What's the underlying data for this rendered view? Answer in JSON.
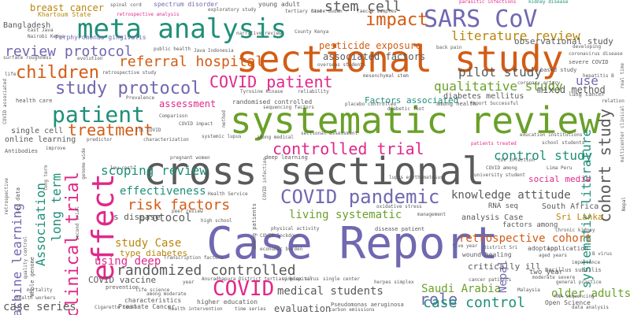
{
  "words": [
    {
      "text": "Case Report",
      "color": "#7068b0"
    },
    {
      "text": "cross sectional",
      "color": "#5a5a5a"
    },
    {
      "text": "sectional study",
      "color": "#d25c14"
    },
    {
      "text": "systematic review",
      "color": "#6aa02a"
    },
    {
      "text": "meta analysis",
      "color": "#1f8f78"
    },
    {
      "text": "effect",
      "color": "#e0288a"
    },
    {
      "text": "COVID pandemic",
      "color": "#7068b0"
    },
    {
      "text": "SARS CoV",
      "color": "#7068b0"
    },
    {
      "text": "patient",
      "color": "#1f8f78"
    },
    {
      "text": "impact",
      "color": "#d25c14"
    },
    {
      "text": "children",
      "color": "#d25c14"
    },
    {
      "text": "study protocol",
      "color": "#7068b0"
    },
    {
      "text": "COVID patient",
      "color": "#e0288a"
    },
    {
      "text": "review protocol",
      "color": "#7068b0"
    },
    {
      "text": "clinical trial",
      "color": "#e0288a"
    },
    {
      "text": "randomized controlled",
      "color": "#5a5a5a"
    },
    {
      "text": "controlled trial",
      "color": "#e0288a"
    },
    {
      "text": "treatment",
      "color": "#d25c14"
    },
    {
      "text": "COVID",
      "color": "#e0288a"
    },
    {
      "text": "cohort study",
      "color": "#5a5a5a"
    },
    {
      "text": "systematic literature",
      "color": "#1f8f78"
    },
    {
      "text": "stem cell",
      "color": "#5a5a5a"
    },
    {
      "text": "literature review",
      "color": "#b8860b"
    },
    {
      "text": "scoping review",
      "color": "#1f8f78"
    },
    {
      "text": "referral hospital",
      "color": "#d25c14"
    },
    {
      "text": "risk factors",
      "color": "#d25c14"
    },
    {
      "text": "control study",
      "color": "#1f8f78"
    },
    {
      "text": "Association",
      "color": "#1f8f78"
    },
    {
      "text": "long term",
      "color": "#1f8f78"
    },
    {
      "text": "machine learning",
      "color": "#7068b0"
    },
    {
      "text": "role",
      "color": "#7068b0"
    },
    {
      "text": "case control",
      "color": "#1f8f78"
    },
    {
      "text": "qualitative study",
      "color": "#6aa02a"
    },
    {
      "text": "pilot study",
      "color": "#5a5a5a"
    },
    {
      "text": "use",
      "color": "#7068b0"
    },
    {
      "text": "knowledge attitude",
      "color": "#5a5a5a"
    },
    {
      "text": "living systematic",
      "color": "#6aa02a"
    },
    {
      "text": "effectiveness",
      "color": "#1f8f78"
    },
    {
      "text": "retrospective cohort",
      "color": "#d25c14"
    },
    {
      "text": "medical students",
      "color": "#5a5a5a"
    },
    {
      "text": "study Case",
      "color": "#b8860b"
    },
    {
      "text": "using deep",
      "color": "#e0288a"
    },
    {
      "text": "Saudi Arabia",
      "color": "#6aa02a"
    },
    {
      "text": "older adults",
      "color": "#6aa02a"
    },
    {
      "text": "case series",
      "color": "#5a5a5a"
    },
    {
      "text": "evaluation",
      "color": "#5a5a5a"
    },
    {
      "text": "mixed method",
      "color": "#5a5a5a"
    },
    {
      "text": "associated factors",
      "color": "#5a5a5a"
    },
    {
      "text": "pesticide exposure",
      "color": "#d25c14"
    },
    {
      "text": "assessment",
      "color": "#e0288a"
    },
    {
      "text": "protocol",
      "color": "#5a5a5a"
    },
    {
      "text": "breast cancer",
      "color": "#b8860b"
    },
    {
      "text": "Bangladesh",
      "color": "#5a5a5a"
    },
    {
      "text": "observational study",
      "color": "#5a5a5a"
    },
    {
      "text": "Factors associated",
      "color": "#1f8f78"
    },
    {
      "text": "diabetes mellitus",
      "color": "#5a5a5a"
    },
    {
      "text": "Nepal",
      "color": "#7068b0"
    },
    {
      "text": "Sri Lanka",
      "color": "#b8860b"
    },
    {
      "text": "South Africa",
      "color": "#5a5a5a"
    },
    {
      "text": "type diabetes",
      "color": "#b8860b"
    },
    {
      "text": "social media",
      "color": "#e0288a"
    },
    {
      "text": "critically ill",
      "color": "#5a5a5a"
    },
    {
      "text": "COVID vaccine",
      "color": "#5a5a5a"
    },
    {
      "text": "s disease",
      "color": "#5a5a5a"
    },
    {
      "text": "randomised controlled",
      "color": "#5a5a5a"
    },
    {
      "text": "two year",
      "color": "#5a5a5a"
    },
    {
      "text": "single cell",
      "color": "#5a5a5a"
    },
    {
      "text": "online learning",
      "color": "#5a5a5a"
    },
    {
      "text": "Khartoum State",
      "color": "#b8860b"
    },
    {
      "text": "young adult",
      "color": "#5a5a5a"
    },
    {
      "text": "spectrum disorder",
      "color": "#7068b0"
    },
    {
      "text": "Porphyromonas gingivalis",
      "color": "#7068b0"
    },
    {
      "text": "retrospective analysis",
      "color": "#e0288a"
    },
    {
      "text": "exploratory study",
      "color": "#5a5a5a"
    },
    {
      "text": "parasitic infections",
      "color": "#e0288a"
    },
    {
      "text": "kidney disease",
      "color": "#1f8f78"
    },
    {
      "text": "State Sudan",
      "color": "#5a5a5a"
    },
    {
      "text": "faecal samples",
      "color": "#5a5a5a"
    },
    {
      "text": "tertiary care",
      "color": "#5a5a5a"
    },
    {
      "text": "spinal cord",
      "color": "#5a5a5a"
    },
    {
      "text": "East Java",
      "color": "#5a5a5a"
    },
    {
      "text": "Nairobi Kenya",
      "color": "#5a5a5a"
    },
    {
      "text": "County Kenya",
      "color": "#5a5a5a"
    },
    {
      "text": "narrative review",
      "color": "#5a5a5a"
    },
    {
      "text": "public health",
      "color": "#5a5a5a"
    },
    {
      "text": "Java Indonesia",
      "color": "#5a5a5a"
    },
    {
      "text": "retrospective study",
      "color": "#5a5a5a"
    },
    {
      "text": "health care",
      "color": "#5a5a5a"
    },
    {
      "text": "life",
      "color": "#5a5a5a"
    },
    {
      "text": "Comparison",
      "color": "#5a5a5a"
    },
    {
      "text": "characterization",
      "color": "#5a5a5a"
    },
    {
      "text": "among medical",
      "color": "#5a5a5a"
    },
    {
      "text": "sectional assessment",
      "color": "#5a5a5a"
    },
    {
      "text": "patients treated",
      "color": "#e0288a"
    },
    {
      "text": "education institutions",
      "color": "#5a5a5a"
    },
    {
      "text": "deep learning",
      "color": "#5a5a5a"
    },
    {
      "text": "lupus erythematosus",
      "color": "#5a5a5a"
    },
    {
      "text": "university student",
      "color": "#5a5a5a"
    },
    {
      "text": "Health Service",
      "color": "#5a5a5a"
    },
    {
      "text": "peer review",
      "color": "#5a5a5a"
    },
    {
      "text": "high school",
      "color": "#5a5a5a"
    },
    {
      "text": "physical activity",
      "color": "#5a5a5a"
    },
    {
      "text": "COVID lockdown",
      "color": "#5a5a5a"
    },
    {
      "text": "economic burden",
      "color": "#5a5a5a"
    },
    {
      "text": "analysis Case",
      "color": "#5a5a5a"
    },
    {
      "text": "RNA seq",
      "color": "#5a5a5a"
    },
    {
      "text": "factors among",
      "color": "#5a5a5a"
    },
    {
      "text": "wound healing",
      "color": "#5a5a5a"
    },
    {
      "text": "adoption",
      "color": "#5a5a5a"
    },
    {
      "text": "aged years",
      "color": "#5a5a5a"
    },
    {
      "text": "Bacillus subtilis",
      "color": "#5a5a5a"
    },
    {
      "text": "moderate severe",
      "color": "#5a5a5a"
    },
    {
      "text": "general practice",
      "color": "#5a5a5a"
    },
    {
      "text": "higher education",
      "color": "#5a5a5a"
    },
    {
      "text": "Pseudomonas aeruginosa",
      "color": "#5a5a5a"
    },
    {
      "text": "Open Science",
      "color": "#5a5a5a"
    },
    {
      "text": "Prostate Cancer",
      "color": "#5a5a5a"
    },
    {
      "text": "characteristics",
      "color": "#5a5a5a"
    },
    {
      "text": "among moderate",
      "color": "#5a5a5a"
    },
    {
      "text": "prevention",
      "color": "#5a5a5a"
    },
    {
      "text": "life science",
      "color": "#5a5a5a"
    },
    {
      "text": "Anuradhapura District tertiary hospital",
      "color": "#5a5a5a"
    },
    {
      "text": "severe COVID",
      "color": "#5a5a5a"
    },
    {
      "text": "coronavirus disease",
      "color": "#5a5a5a"
    },
    {
      "text": "developing",
      "color": "#5a5a5a"
    },
    {
      "text": "application",
      "color": "#5a5a5a"
    },
    {
      "text": "mesenchymal stem",
      "color": "#5a5a5a"
    },
    {
      "text": "Tyrosine Kinase",
      "color": "#5a5a5a"
    },
    {
      "text": "among health",
      "color": "#5a5a5a"
    },
    {
      "text": "diabetic foot",
      "color": "#5a5a5a"
    },
    {
      "text": "Antibodies",
      "color": "#5a5a5a"
    },
    {
      "text": "Cigarette Smoke",
      "color": "#5a5a5a"
    },
    {
      "text": "health workers",
      "color": "#5a5a5a"
    },
    {
      "text": "mortality",
      "color": "#5a5a5a"
    },
    {
      "text": "lung cancer",
      "color": "#5a5a5a"
    },
    {
      "text": "hepatitis B",
      "color": "#5a5a5a"
    },
    {
      "text": "coronary artery",
      "color": "#5a5a5a"
    },
    {
      "text": "back pain",
      "color": "#5a5a5a"
    },
    {
      "text": "overseas students",
      "color": "#5a5a5a"
    },
    {
      "text": "school students",
      "color": "#5a5a5a"
    },
    {
      "text": "CoV infection",
      "color": "#5a5a5a"
    },
    {
      "text": "Lima Peru",
      "color": "#5a5a5a"
    },
    {
      "text": "COVID among",
      "color": "#5a5a5a"
    },
    {
      "text": "chronic kidney",
      "color": "#5a5a5a"
    },
    {
      "text": "cancer patients",
      "color": "#5a5a5a"
    },
    {
      "text": "Malaysia",
      "color": "#5a5a5a"
    },
    {
      "text": "data analysis",
      "color": "#5a5a5a"
    },
    {
      "text": "RNA sequencing",
      "color": "#5a5a5a"
    },
    {
      "text": "importance",
      "color": "#5a5a5a"
    },
    {
      "text": "District Sri",
      "color": "#5a5a5a"
    },
    {
      "text": "herpes simplex",
      "color": "#5a5a5a"
    },
    {
      "text": "simplex virus",
      "color": "#5a5a5a"
    },
    {
      "text": "single center",
      "color": "#5a5a5a"
    },
    {
      "text": "management",
      "color": "#5a5a5a"
    },
    {
      "text": "oxidative stress",
      "color": "#5a5a5a"
    },
    {
      "text": "five year",
      "color": "#5a5a5a"
    },
    {
      "text": "disease patient",
      "color": "#5a5a5a"
    },
    {
      "text": "improve",
      "color": "#5a5a5a"
    },
    {
      "text": "Whole genome",
      "color": "#5a5a5a"
    },
    {
      "text": "quality control",
      "color": "#5a5a5a"
    },
    {
      "text": "long term",
      "color": "#5a5a5a"
    },
    {
      "text": "seq data",
      "color": "#5a5a5a"
    },
    {
      "text": "low cost",
      "color": "#5a5a5a"
    },
    {
      "text": "pregnant women",
      "color": "#5a5a5a"
    },
    {
      "text": "ill COVID",
      "color": "#5a5a5a"
    },
    {
      "text": "predictor",
      "color": "#5a5a5a"
    },
    {
      "text": "systemic lupus",
      "color": "#5a5a5a"
    },
    {
      "text": "COVID impact",
      "color": "#5a5a5a"
    },
    {
      "text": "placebo controlled",
      "color": "#5a5a5a"
    },
    {
      "text": "sequencing factors",
      "color": "#5a5a5a"
    },
    {
      "text": "Report Successful",
      "color": "#5a5a5a"
    },
    {
      "text": "surface roughness",
      "color": "#5a5a5a"
    },
    {
      "text": "reliability",
      "color": "#5a5a5a"
    },
    {
      "text": "Prevalence",
      "color": "#5a5a5a"
    },
    {
      "text": "evolution",
      "color": "#5a5a5a"
    },
    {
      "text": "based study",
      "color": "#5a5a5a"
    },
    {
      "text": "real time",
      "color": "#5a5a5a"
    },
    {
      "text": "relation",
      "color": "#5a5a5a"
    },
    {
      "text": "multicenter clinical",
      "color": "#5a5a5a"
    },
    {
      "text": "COVID associated",
      "color": "#5a5a5a"
    },
    {
      "text": "retrospective",
      "color": "#5a5a5a"
    },
    {
      "text": "Transcription factors",
      "color": "#5a5a5a"
    },
    {
      "text": "method",
      "color": "#5a5a5a"
    },
    {
      "text": "among patients",
      "color": "#5a5a5a"
    },
    {
      "text": "COVID infection",
      "color": "#5a5a5a"
    },
    {
      "text": "second trial",
      "color": "#5a5a5a"
    },
    {
      "text": "genome wide",
      "color": "#5a5a5a"
    },
    {
      "text": "health intervention",
      "color": "#5a5a5a"
    },
    {
      "text": "time series",
      "color": "#5a5a5a"
    },
    {
      "text": "carbon emissions",
      "color": "#5a5a5a"
    },
    {
      "text": "year",
      "color": "#5a5a5a"
    },
    {
      "text": "B virus",
      "color": "#5a5a5a"
    },
    {
      "text": "Nepal",
      "color": "#5a5a5a"
    }
  ]
}
